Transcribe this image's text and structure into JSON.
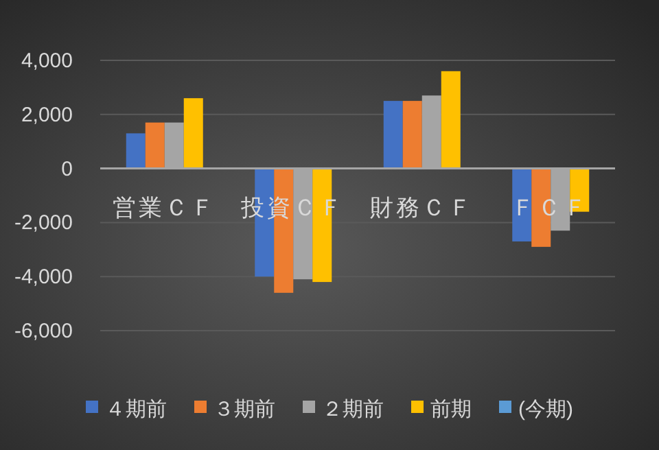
{
  "chart_data": {
    "type": "bar",
    "categories": [
      "営業ＣＦ",
      "投資ＣＦ",
      "財務ＣＦ",
      "ＦＣＦ"
    ],
    "series": [
      {
        "name": "４期前",
        "color": "#4472c4",
        "values": [
          1300,
          -4000,
          2500,
          -2700
        ]
      },
      {
        "name": "３期前",
        "color": "#ed7d31",
        "values": [
          1700,
          -4600,
          2500,
          -2900
        ]
      },
      {
        "name": "２期前",
        "color": "#a5a5a5",
        "values": [
          1700,
          -4100,
          2700,
          -2300
        ]
      },
      {
        "name": "前期",
        "color": "#ffc000",
        "values": [
          2600,
          -4200,
          3600,
          -1600
        ]
      },
      {
        "name": "(今期)",
        "color": "#5b9bd5",
        "values": [
          null,
          null,
          null,
          null
        ]
      }
    ],
    "ylim": [
      -6000,
      4000
    ],
    "yticks": [
      {
        "value": -6000,
        "label": "-6,000"
      },
      {
        "value": -4000,
        "label": "-4,000"
      },
      {
        "value": -2000,
        "label": "-2,000"
      },
      0,
      {
        "value": 2000,
        "label": "2,000"
      },
      {
        "value": 4000,
        "label": "4,000"
      }
    ],
    "grid": "y",
    "legend": "bottom"
  }
}
